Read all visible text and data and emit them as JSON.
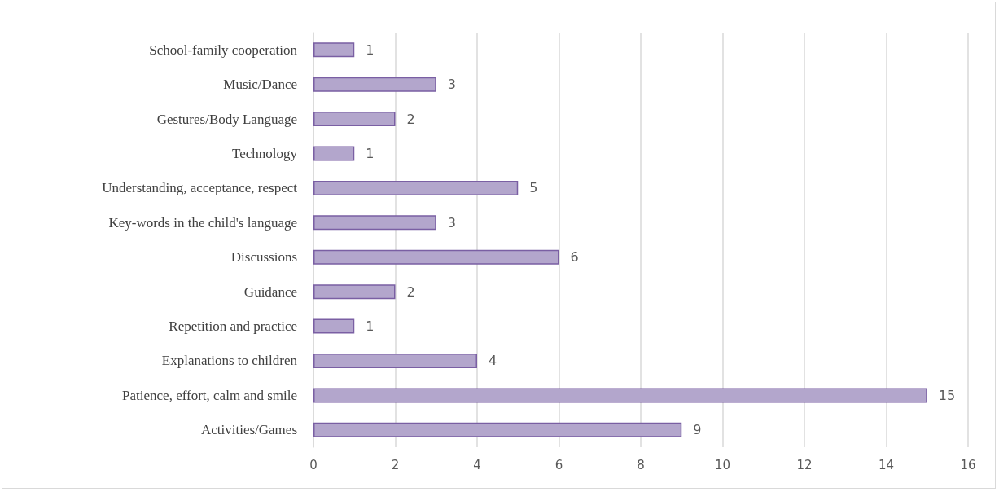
{
  "chart_data": {
    "type": "bar",
    "orientation": "horizontal",
    "categories": [
      "School-family cooperation",
      "Music/Dance",
      "Gestures/Body Language",
      "Technology",
      "Understanding, acceptance, respect",
      "Key-words in the child's language",
      "Discussions",
      "Guidance",
      "Repetition and practice",
      "Explanations to children",
      "Patience, effort, calm and smile",
      "Activities/Games"
    ],
    "values": [
      1,
      3,
      2,
      1,
      5,
      3,
      6,
      2,
      1,
      4,
      15,
      9
    ],
    "color": "#b3a6cc",
    "xlim": [
      0,
      16
    ],
    "xticks": [
      0,
      2,
      4,
      6,
      8,
      10,
      12,
      14,
      16
    ],
    "grid": "x",
    "data_labels": true
  }
}
